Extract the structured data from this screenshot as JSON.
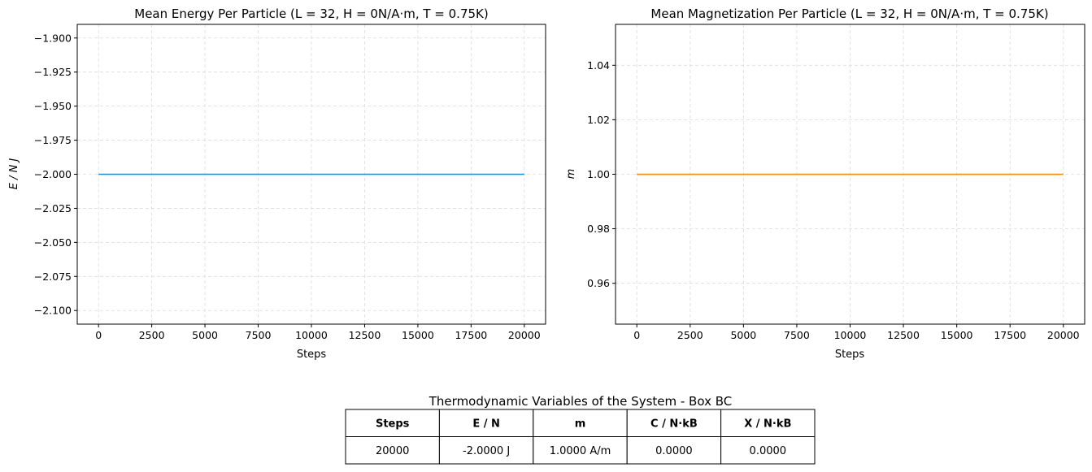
{
  "chart_data": [
    {
      "type": "line",
      "title": "Mean Energy Per Particle (L = 32, H = 0N/A·m, T = 0.75K)",
      "xlabel": "Steps",
      "ylabel": "E / N J",
      "xlim": [
        -1000,
        21000
      ],
      "ylim": [
        -2.11,
        -1.89
      ],
      "xticks": [
        0,
        2500,
        5000,
        7500,
        10000,
        12500,
        15000,
        17500,
        20000
      ],
      "xtick_labels": [
        "0",
        "2500",
        "5000",
        "7500",
        "10000",
        "12500",
        "15000",
        "17500",
        "20000"
      ],
      "yticks": [
        -1.9,
        -1.925,
        -1.95,
        -1.975,
        -2.0,
        -2.025,
        -2.05,
        -2.075,
        -2.1
      ],
      "ytick_labels": [
        "−1.900",
        "−1.925",
        "−1.950",
        "−1.975",
        "−2.000",
        "−2.025",
        "−2.050",
        "−2.075",
        "−2.100"
      ],
      "grid": true,
      "series": [
        {
          "color": "#1f8fd6",
          "x": [
            0,
            20000
          ],
          "y": [
            -2.0,
            -2.0
          ]
        }
      ]
    },
    {
      "type": "line",
      "title": "Mean Magnetization Per Particle (L = 32, H = 0N/A·m, T = 0.75K)",
      "xlabel": "Steps",
      "ylabel": "m",
      "xlim": [
        -1000,
        21000
      ],
      "ylim": [
        0.945,
        1.055
      ],
      "xticks": [
        0,
        2500,
        5000,
        7500,
        10000,
        12500,
        15000,
        17500,
        20000
      ],
      "xtick_labels": [
        "0",
        "2500",
        "5000",
        "7500",
        "10000",
        "12500",
        "15000",
        "17500",
        "20000"
      ],
      "yticks": [
        0.96,
        0.98,
        1.0,
        1.02,
        1.04
      ],
      "ytick_labels": [
        "0.96",
        "0.98",
        "1.00",
        "1.02",
        "1.04"
      ],
      "grid": true,
      "series": [
        {
          "color": "#ff8c00",
          "x": [
            0,
            20000
          ],
          "y": [
            1.0,
            1.0
          ]
        }
      ]
    },
    {
      "type": "table",
      "title": "Thermodynamic Variables of the System - Box BC",
      "columns": [
        "Steps",
        "E / N",
        "m",
        "C / N·kB",
        "X / N·kB"
      ],
      "rows": [
        [
          "20000",
          "-2.0000 J",
          "1.0000 A/m",
          "0.0000",
          "0.0000"
        ]
      ]
    }
  ]
}
